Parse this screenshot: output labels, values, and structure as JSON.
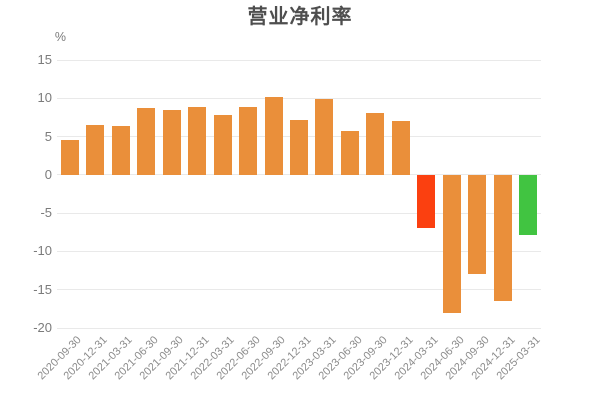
{
  "colors": {
    "background": "#FFFFFF",
    "bar_positive_default": "#EA8F3A",
    "bar_negative_highlight": "#FB4010",
    "bar_latest_period": "#41C441",
    "grid_line": "#E9E9E9",
    "title_text": "#4E4E4E",
    "axis_label_text": "#7B7B7B",
    "date_label_text": "#8C8C8C"
  },
  "chart_data": {
    "type": "bar",
    "title": "营业净利率",
    "xlabel": "",
    "ylabel": "%",
    "ylim": [
      -20,
      15
    ],
    "ytick_interval": 5,
    "yticks": [
      15,
      10,
      5,
      0,
      -5,
      -10,
      -15,
      -20
    ],
    "grid": true,
    "legend_position": "none",
    "categories": [
      "2020-09-30",
      "2020-12-31",
      "2021-03-31",
      "2021-06-30",
      "2021-09-30",
      "2021-12-31",
      "2022-03-31",
      "2022-06-30",
      "2022-09-30",
      "2022-12-31",
      "2023-03-31",
      "2023-06-30",
      "2023-09-30",
      "2023-12-31",
      "2024-03-31",
      "2024-06-30",
      "2024-09-30",
      "2024-12-31",
      "2025-03-31"
    ],
    "values": [
      4.5,
      6.5,
      6.4,
      8.7,
      8.5,
      8.9,
      7.8,
      8.9,
      10.2,
      7.2,
      9.9,
      5.7,
      8.1,
      7.0,
      -6.9,
      -18.0,
      -12.9,
      -16.5,
      -7.9
    ],
    "bar_colors": [
      "#EA8F3A",
      "#EA8F3A",
      "#EA8F3A",
      "#EA8F3A",
      "#EA8F3A",
      "#EA8F3A",
      "#EA8F3A",
      "#EA8F3A",
      "#EA8F3A",
      "#EA8F3A",
      "#EA8F3A",
      "#EA8F3A",
      "#EA8F3A",
      "#EA8F3A",
      "#FB4010",
      "#EA8F3A",
      "#EA8F3A",
      "#EA8F3A",
      "#41C441"
    ]
  }
}
